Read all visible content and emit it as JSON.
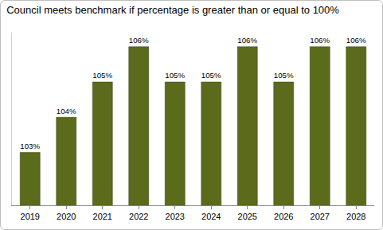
{
  "chart_data": {
    "type": "bar",
    "title": "Council meets benchmark if percentage is greater than or equal to 100%",
    "categories": [
      "2019",
      "2020",
      "2021",
      "2022",
      "2023",
      "2024",
      "2025",
      "2026",
      "2027",
      "2028"
    ],
    "values": [
      103,
      104,
      105,
      106,
      105,
      105,
      106,
      105,
      106,
      106
    ],
    "value_labels": [
      "103%",
      "104%",
      "105%",
      "106%",
      "105%",
      "105%",
      "106%",
      "105%",
      "106%",
      "106%"
    ],
    "data_labels": true,
    "color": "#5b6a1b",
    "ylim": [
      101.5,
      106.4
    ],
    "grid": false,
    "tick_labels": "x"
  }
}
